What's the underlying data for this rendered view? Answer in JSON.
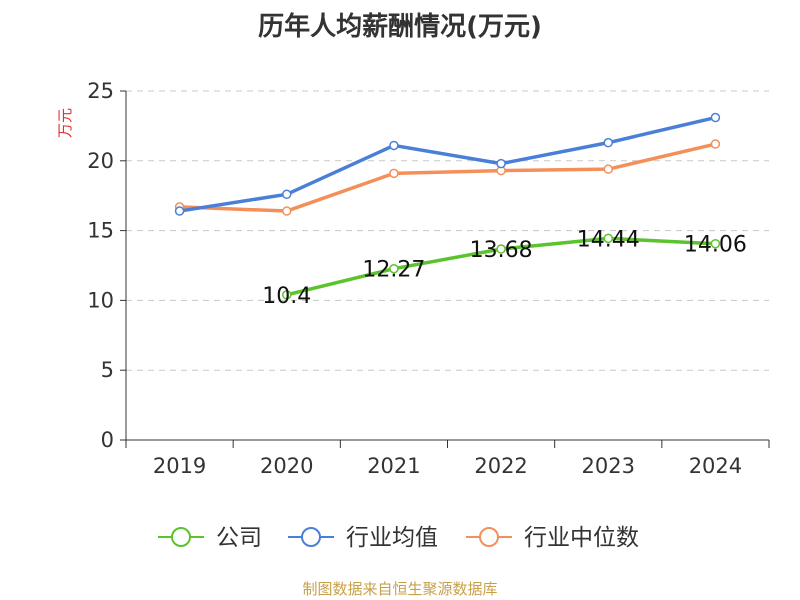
{
  "chart_data": {
    "type": "line",
    "title": "历年人均薪酬情况(万元)",
    "ylabel": "万元",
    "xlabel": "",
    "categories": [
      "2019",
      "2020",
      "2021",
      "2022",
      "2023",
      "2024"
    ],
    "ylim": [
      0,
      25
    ],
    "yticks": [
      0,
      5,
      10,
      15,
      20,
      25
    ],
    "grid": true,
    "legend_position": "bottom",
    "series": [
      {
        "name": "公司",
        "color": "#5cc32c",
        "values": [
          null,
          10.4,
          12.27,
          13.68,
          14.44,
          14.06
        ],
        "labels": [
          "",
          "10.4",
          "12.27",
          "13.68",
          "14.44",
          "14.06"
        ]
      },
      {
        "name": "行业均值",
        "color": "#4a7fd9",
        "values": [
          16.4,
          17.6,
          21.1,
          19.8,
          21.3,
          23.1
        ]
      },
      {
        "name": "行业中位数",
        "color": "#f58f5a",
        "values": [
          16.7,
          16.4,
          19.1,
          19.3,
          19.4,
          21.2
        ]
      }
    ],
    "source": "制图数据来自恒生聚源数据库"
  }
}
